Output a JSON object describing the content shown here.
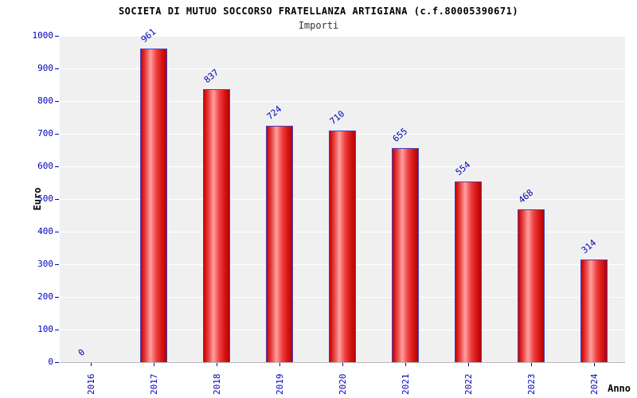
{
  "chart_data": {
    "type": "bar",
    "title": "SOCIETA DI MUTUO SOCCORSO FRATELLANZA ARTIGIANA (c.f.80005390671)",
    "subtitle": "Importi",
    "xlabel": "Anno",
    "ylabel": "Euro",
    "categories": [
      "2016",
      "2017",
      "2018",
      "2019",
      "2020",
      "2021",
      "2022",
      "2023",
      "2024"
    ],
    "values": [
      0,
      961,
      837,
      724,
      710,
      655,
      554,
      468,
      314
    ],
    "ylim": [
      0,
      1000
    ],
    "ytick_step": 100,
    "grid": true,
    "legend": false,
    "colors": {
      "bar_fill": "#e02020",
      "bar_highlight": "#ffa0a0",
      "bar_border": "#4444bb",
      "text_accent": "#0000bb",
      "plot_background": "#f0f0f0",
      "grid_line": "#ffffff"
    }
  }
}
